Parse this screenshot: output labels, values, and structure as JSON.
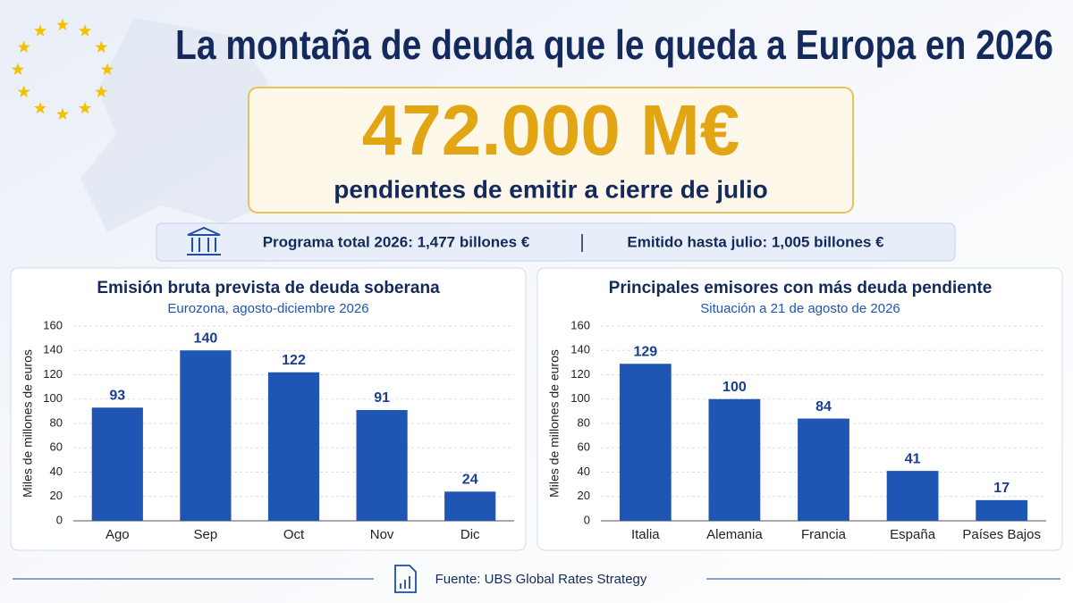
{
  "title": "La montaña de deuda que le queda a Europa en 2026",
  "highlight": {
    "value": "472.000 M€",
    "caption": "pendientes de emitir a cierre de julio"
  },
  "summary": [
    "Programa total 2026: 1,477 billones €",
    "Emitido hasta julio: 1,005 billones €"
  ],
  "chart_data": [
    {
      "type": "bar",
      "title": "Emisión bruta prevista de deuda soberana",
      "subtitle": "Eurozona, agosto-diciembre 2026",
      "y_label": "Miles de millones de euros",
      "categories": [
        "Ago",
        "Sep",
        "Oct",
        "Nov",
        "Dic"
      ],
      "values": [
        93,
        140,
        122,
        91,
        24
      ],
      "color": "#1f56b3",
      "ylim": [
        0,
        160
      ],
      "yticks": [
        0,
        20,
        40,
        60,
        80,
        100,
        120,
        140,
        160
      ],
      "grid": true
    },
    {
      "type": "bar",
      "title": "Principales emisores con más deuda pendiente",
      "subtitle": "Situación a 21 de agosto de 2026",
      "y_label": "Miles de millones de euros",
      "categories": [
        "Italia",
        "Alemania",
        "Francia",
        "España",
        "Países Bajos"
      ],
      "values": [
        129,
        100,
        84,
        41,
        17
      ],
      "color": "#1f56b3",
      "ylim": [
        0,
        160
      ],
      "yticks": [
        0,
        20,
        40,
        60,
        80,
        100,
        120,
        140,
        160
      ],
      "grid": true
    }
  ],
  "source": "Fuente: UBS Global Rates Strategy"
}
